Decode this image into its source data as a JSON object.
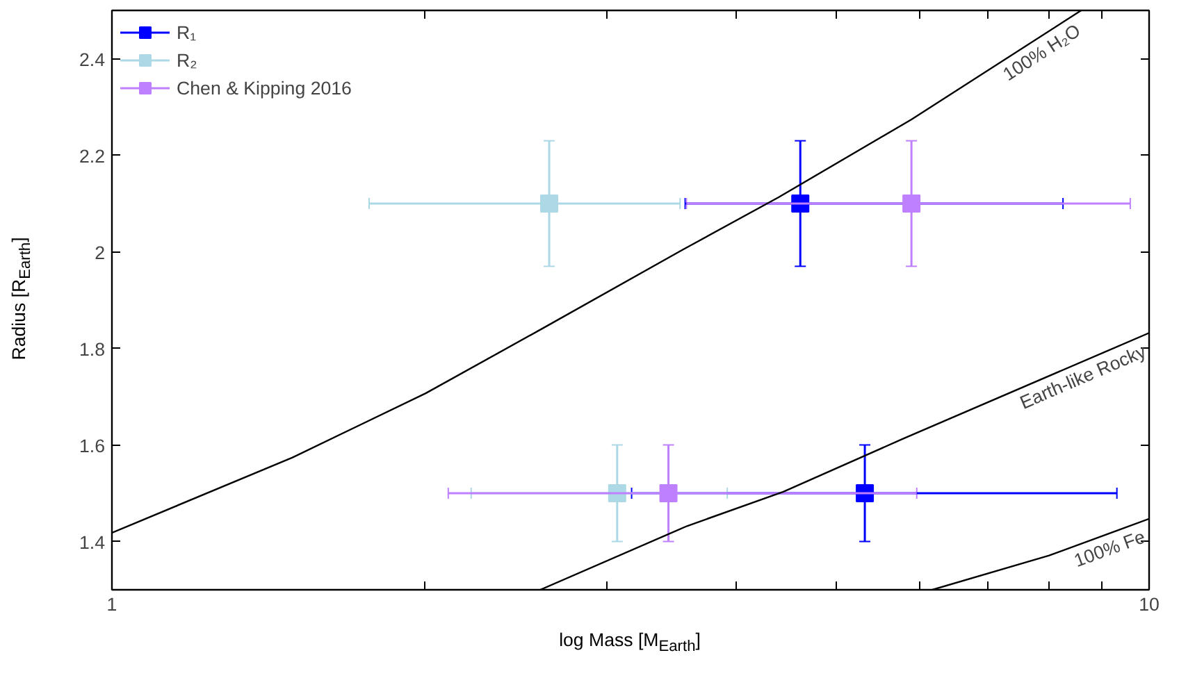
{
  "chart_data": {
    "type": "scatter",
    "xlabel": "log Mass [M$_{Earth}$]",
    "ylabel": "Radius [R$_{Earth}$]",
    "log": "x",
    "xlim": [
      1,
      10
    ],
    "ylim": [
      1.3,
      2.5
    ],
    "xticks": [
      1,
      {
        "value": 2,
        "label": null
      },
      {
        "value": 3,
        "label": null
      },
      {
        "value": 4,
        "label": null
      },
      {
        "value": 5,
        "label": null
      },
      {
        "value": 6,
        "label": null
      },
      {
        "value": 7,
        "label": null
      },
      {
        "value": 8,
        "label": null
      },
      {
        "value": 9,
        "label": null
      },
      10
    ],
    "yticks": [
      1.4,
      1.6,
      1.8,
      2,
      2.2,
      2.4
    ],
    "grid": false,
    "legend": "top left",
    "marker": "square",
    "series": [
      {
        "name": "R₁",
        "color": "#0000ff",
        "x": [
          4.61,
          5.32
        ],
        "values": [
          2.1,
          1.5
        ],
        "xerrors": [
          [
            3.57,
            8.26
          ],
          [
            3.17,
            9.31
          ]
        ],
        "errors": [
          [
            1.97,
            2.23
          ],
          [
            1.4,
            1.6
          ]
        ]
      },
      {
        "name": "R₂",
        "color": "#add8e6",
        "x": [
          2.64,
          3.07
        ],
        "values": [
          2.1,
          1.5
        ],
        "xerrors": [
          [
            1.77,
            3.53
          ],
          [
            2.22,
            3.92
          ]
        ],
        "errors": [
          [
            1.97,
            2.23
          ],
          [
            1.4,
            1.6
          ]
        ]
      },
      {
        "name": "Chen & Kipping 2016",
        "color": "#bf80ff",
        "x": [
          5.9,
          3.44
        ],
        "values": [
          2.1,
          1.5
        ],
        "xerrors": [
          [
            3.58,
            9.59
          ],
          [
            2.11,
            5.97
          ]
        ],
        "errors": [
          [
            1.97,
            2.23
          ],
          [
            1.4,
            1.6
          ]
        ]
      },
      {
        "type": "line",
        "color": "#000000",
        "marker": "none",
        "x": [
          1,
          1.493,
          2.007,
          2.615,
          3.548,
          4.393,
          5.9,
          8.6
        ],
        "values": [
          1.418,
          1.574,
          1.707,
          1.844,
          2.004,
          2.113,
          2.274,
          2.5
        ]
      },
      {
        "type": "line",
        "color": "#000000",
        "marker": "none",
        "x": [
          2.588,
          3.585,
          4.44,
          5.78,
          10
        ],
        "values": [
          1.3,
          1.432,
          1.503,
          1.612,
          1.832
        ]
      },
      {
        "type": "line",
        "color": "#000000",
        "marker": "none",
        "x": [
          6.18,
          8.01,
          10
        ],
        "values": [
          1.3,
          1.371,
          1.447
        ]
      }
    ],
    "annotations": [
      "100% H₂O",
      "Earth-like Rocky",
      "100% Fe"
    ]
  }
}
